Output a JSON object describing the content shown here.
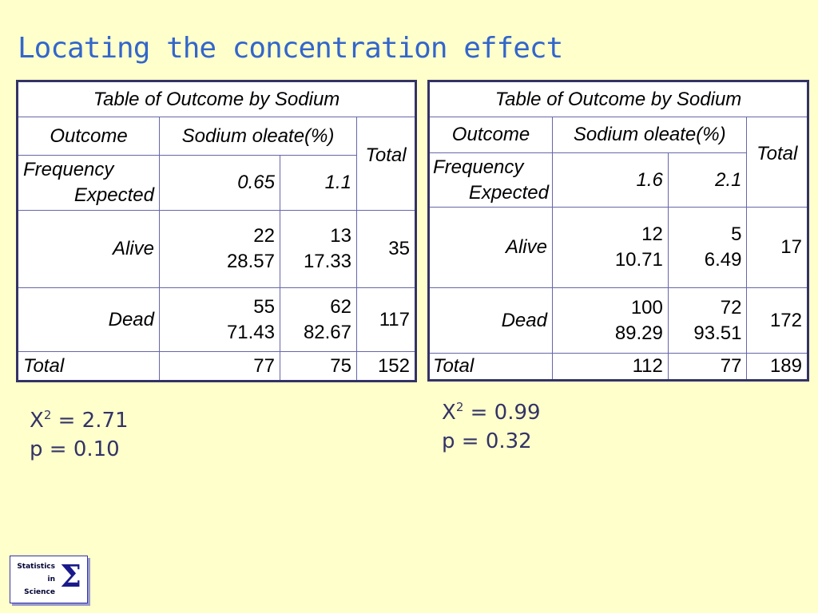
{
  "slide": {
    "title": "Locating the concentration effect"
  },
  "tables": [
    {
      "caption": "Table of Outcome by Sodium",
      "outcome_label": "Outcome",
      "group_label": "Sodium oleate(%)",
      "total_label": "Total",
      "freq_label": "Frequency",
      "exp_label": "Expected",
      "columns": [
        "0.65",
        "1.1"
      ],
      "rows": [
        {
          "label": "Alive",
          "cells": [
            {
              "freq": "22",
              "exp": "28.57"
            },
            {
              "freq": "13",
              "exp": "17.33"
            }
          ],
          "total": "35"
        },
        {
          "label": "Dead",
          "cells": [
            {
              "freq": "55",
              "exp": "71.43"
            },
            {
              "freq": "62",
              "exp": "82.67"
            }
          ],
          "total": "117"
        }
      ],
      "footer_label": "Total",
      "column_totals": [
        "77",
        "75"
      ],
      "grand_total": "152",
      "stats": {
        "chi_label": "X",
        "chi_sup": "2",
        "chi_value": " = 2.71",
        "p": "p = 0.10"
      }
    },
    {
      "caption": "Table of Outcome by Sodium",
      "outcome_label": "Outcome",
      "group_label": "Sodium oleate(%)",
      "total_label": "Total",
      "freq_label": "Frequency",
      "exp_label": "Expected",
      "columns": [
        "1.6",
        "2.1"
      ],
      "rows": [
        {
          "label": "Alive",
          "cells": [
            {
              "freq": "12",
              "exp": "10.71"
            },
            {
              "freq": "5",
              "exp": "6.49"
            }
          ],
          "total": "17"
        },
        {
          "label": "Dead",
          "cells": [
            {
              "freq": "100",
              "exp": "89.29"
            },
            {
              "freq": "72",
              "exp": "93.51"
            }
          ],
          "total": "172"
        }
      ],
      "footer_label": "Total",
      "column_totals": [
        "112",
        "77"
      ],
      "grand_total": "189",
      "stats": {
        "chi_label": "X",
        "chi_sup": "2",
        "chi_value": " = 0.99",
        "p": "p = 0.32"
      }
    }
  ],
  "logo": {
    "line1": "Statistics",
    "line2": "in",
    "line3": "Science",
    "symbol": "Σ"
  },
  "colors": {
    "background": "#FFFFCC",
    "title": "#3366CC",
    "stats_text": "#333366",
    "table_border": "#333366"
  }
}
